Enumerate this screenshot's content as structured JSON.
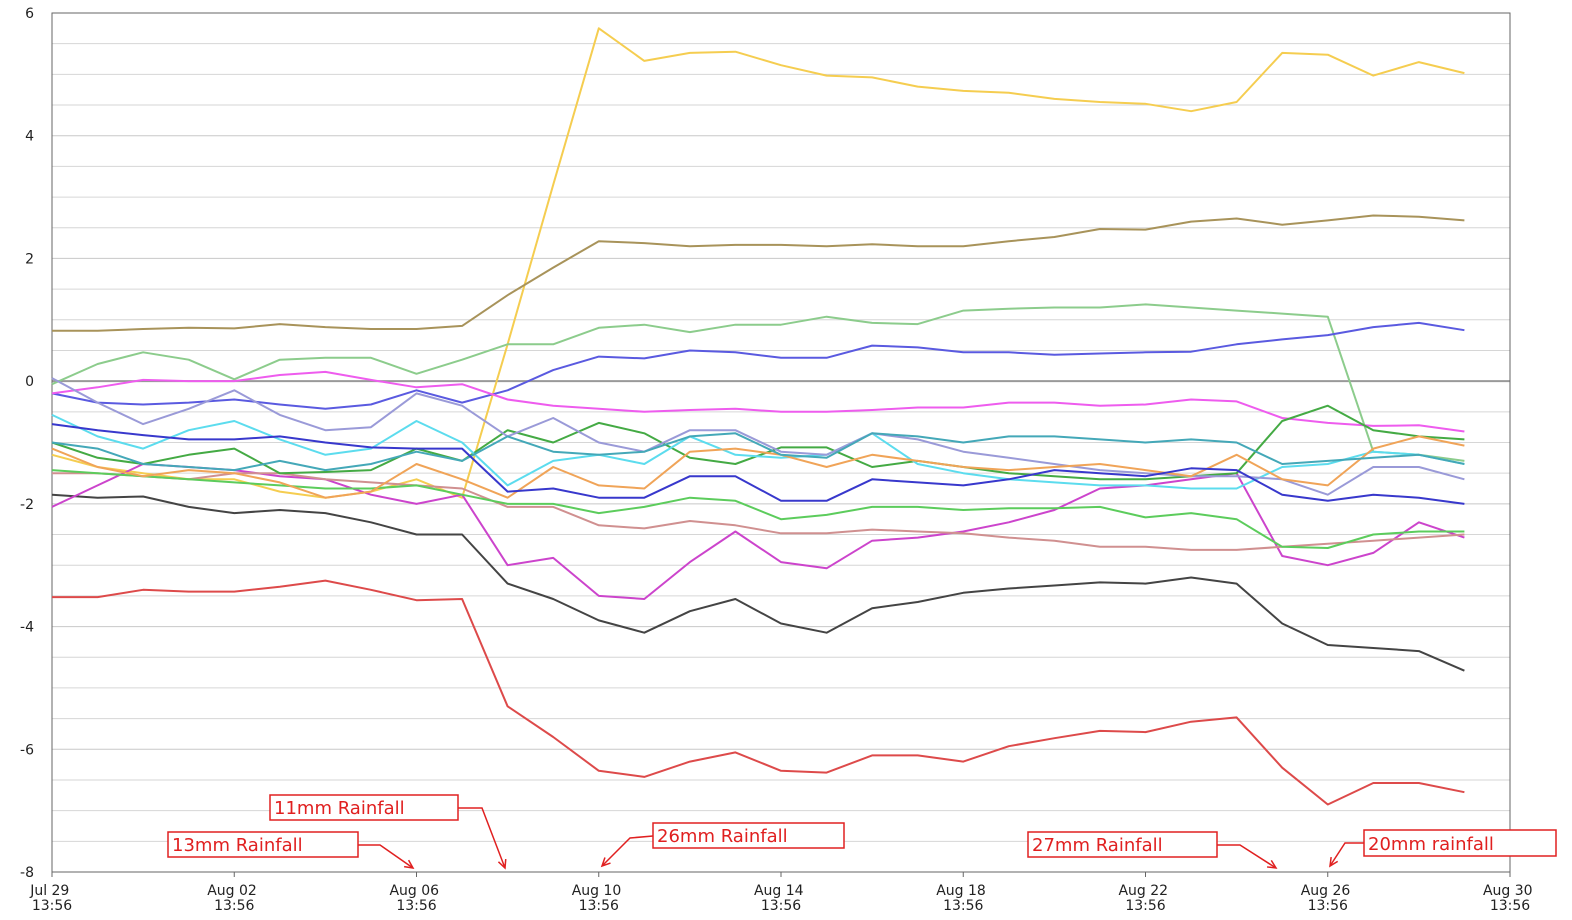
{
  "chart_data": {
    "type": "line",
    "x": [
      "Jul 29 13:56",
      "Jul 30 13:56",
      "Jul 31 13:56",
      "Aug 01 13:56",
      "Aug 02 13:56",
      "Aug 03 13:56",
      "Aug 04 13:56",
      "Aug 05 13:56",
      "Aug 06 13:56",
      "Aug 07 13:56",
      "Aug 08 13:56",
      "Aug 09 13:56",
      "Aug 10 13:56",
      "Aug 11 13:56",
      "Aug 12 13:56",
      "Aug 13 13:56",
      "Aug 14 13:56",
      "Aug 15 13:56",
      "Aug 16 13:56",
      "Aug 17 13:56",
      "Aug 18 13:56",
      "Aug 19 13:56",
      "Aug 20 13:56",
      "Aug 21 13:56",
      "Aug 22 13:56",
      "Aug 23 13:56",
      "Aug 24 13:56",
      "Aug 25 13:56",
      "Aug 26 13:56",
      "Aug 27 13:56",
      "Aug 28 13:56",
      "Aug 29 13:56"
    ],
    "xlim": [
      "Jul 29 13:56",
      "Aug 30 13:56"
    ],
    "xticks": [
      "Jul 29 13:56",
      "Aug 02 13:56",
      "Aug 06 13:56",
      "Aug 10 13:56",
      "Aug 14 13:56",
      "Aug 18 13:56",
      "Aug 22 13:56",
      "Aug 26 13:56",
      "Aug 30 13:56"
    ],
    "ylim": [
      -8,
      6
    ],
    "yticks": [
      -8,
      -6,
      -4,
      -2,
      0,
      2,
      4,
      6
    ],
    "grid": true,
    "series": [
      {
        "color": "#f5cd50",
        "values": [
          -1.2,
          -1.4,
          -1.5,
          -1.6,
          -1.6,
          -1.8,
          -1.9,
          -1.8,
          -1.6,
          -1.9,
          0.6,
          3.2,
          5.75,
          5.22,
          5.35,
          5.37,
          5.15,
          4.98,
          4.95,
          4.8,
          4.73,
          4.7,
          4.6,
          4.55,
          4.52,
          4.4,
          4.55,
          5.35,
          5.32,
          4.98,
          5.2,
          5.02
        ]
      },
      {
        "color": "#a8935a",
        "values": [
          0.82,
          0.82,
          0.85,
          0.87,
          0.86,
          0.93,
          0.88,
          0.85,
          0.85,
          0.9,
          1.4,
          1.85,
          2.28,
          2.25,
          2.2,
          2.22,
          2.22,
          2.2,
          2.23,
          2.2,
          2.2,
          2.28,
          2.35,
          2.48,
          2.47,
          2.6,
          2.65,
          2.55,
          2.62,
          2.7,
          2.68,
          2.62
        ]
      },
      {
        "color": "#8ccc8c",
        "values": [
          -0.05,
          0.28,
          0.47,
          0.35,
          0.03,
          0.35,
          0.38,
          0.38,
          0.12,
          0.35,
          0.6,
          0.6,
          0.87,
          0.92,
          0.8,
          0.92,
          0.92,
          1.05,
          0.95,
          0.93,
          1.15,
          1.18,
          1.2,
          1.2,
          1.25,
          1.2,
          1.15,
          1.1,
          1.05,
          -1.15,
          -1.2,
          -1.3
        ]
      },
      {
        "color": "#5a5ae0",
        "values": [
          -0.2,
          -0.35,
          -0.38,
          -0.35,
          -0.3,
          -0.38,
          -0.45,
          -0.38,
          -0.15,
          -0.35,
          -0.15,
          0.18,
          0.4,
          0.37,
          0.5,
          0.47,
          0.38,
          0.38,
          0.58,
          0.55,
          0.47,
          0.47,
          0.43,
          0.45,
          0.47,
          0.48,
          0.6,
          0.68,
          0.75,
          0.88,
          0.95,
          0.83
        ]
      },
      {
        "color": "#ee5cee",
        "values": [
          -0.2,
          -0.1,
          0.02,
          0.0,
          0.0,
          0.1,
          0.15,
          0.02,
          -0.1,
          -0.05,
          -0.3,
          -0.4,
          -0.45,
          -0.5,
          -0.47,
          -0.45,
          -0.5,
          -0.5,
          -0.47,
          -0.43,
          -0.43,
          -0.35,
          -0.35,
          -0.4,
          -0.38,
          -0.3,
          -0.33,
          -0.6,
          -0.68,
          -0.73,
          -0.72,
          -0.82
        ]
      },
      {
        "color": "#444444",
        "values": [
          -1.85,
          -1.9,
          -1.88,
          -2.05,
          -2.15,
          -2.1,
          -2.15,
          -2.3,
          -2.5,
          -2.5,
          -3.3,
          -3.55,
          -3.9,
          -4.1,
          -3.75,
          -3.55,
          -3.95,
          -4.1,
          -3.7,
          -3.6,
          -3.45,
          -3.38,
          -3.33,
          -3.28,
          -3.3,
          -3.2,
          -3.3,
          -3.95,
          -4.3,
          -4.35,
          -4.4,
          -4.72
        ]
      },
      {
        "color": "#dd4a4a",
        "values": [
          -3.52,
          -3.52,
          -3.4,
          -3.43,
          -3.43,
          -3.35,
          -3.25,
          -3.4,
          -3.57,
          -3.55,
          -5.3,
          -5.8,
          -6.35,
          -6.45,
          -6.2,
          -6.05,
          -6.35,
          -6.38,
          -6.1,
          -6.1,
          -6.2,
          -5.95,
          -5.82,
          -5.7,
          -5.72,
          -5.55,
          -5.48,
          -6.3,
          -6.9,
          -6.55,
          -6.55,
          -6.7
        ]
      },
      {
        "color": "#cc44cc",
        "values": [
          -2.05,
          -1.7,
          -1.35,
          -1.4,
          -1.45,
          -1.55,
          -1.6,
          -1.85,
          -2.0,
          -1.85,
          -3.0,
          -2.88,
          -3.5,
          -3.55,
          -2.95,
          -2.45,
          -2.95,
          -3.05,
          -2.6,
          -2.55,
          -2.45,
          -2.3,
          -2.1,
          -1.75,
          -1.7,
          -1.6,
          -1.5,
          -2.85,
          -3.0,
          -2.8,
          -2.3,
          -2.55
        ]
      },
      {
        "color": "#d09090",
        "values": [
          -1.5,
          -1.5,
          -1.55,
          -1.6,
          -1.5,
          -1.5,
          -1.6,
          -1.65,
          -1.7,
          -1.75,
          -2.05,
          -2.05,
          -2.35,
          -2.4,
          -2.28,
          -2.35,
          -2.48,
          -2.48,
          -2.42,
          -2.45,
          -2.48,
          -2.55,
          -2.6,
          -2.7,
          -2.7,
          -2.75,
          -2.75,
          -2.7,
          -2.65,
          -2.6,
          -2.55,
          -2.5
        ]
      },
      {
        "color": "#5ccc5c",
        "values": [
          -1.45,
          -1.5,
          -1.55,
          -1.6,
          -1.65,
          -1.7,
          -1.75,
          -1.75,
          -1.7,
          -1.85,
          -2.0,
          -2.0,
          -2.15,
          -2.05,
          -1.9,
          -1.95,
          -2.25,
          -2.18,
          -2.05,
          -2.05,
          -2.1,
          -2.07,
          -2.07,
          -2.05,
          -2.22,
          -2.15,
          -2.25,
          -2.7,
          -2.72,
          -2.5,
          -2.45,
          -2.45
        ]
      },
      {
        "color": "#44aa44",
        "values": [
          -1.0,
          -1.25,
          -1.35,
          -1.2,
          -1.1,
          -1.5,
          -1.48,
          -1.45,
          -1.1,
          -1.3,
          -0.8,
          -1.0,
          -0.68,
          -0.85,
          -1.25,
          -1.35,
          -1.08,
          -1.08,
          -1.4,
          -1.3,
          -1.4,
          -1.5,
          -1.55,
          -1.6,
          -1.6,
          -1.55,
          -1.5,
          -0.65,
          -0.4,
          -0.8,
          -0.9,
          -0.95
        ]
      },
      {
        "color": "#5cdcee",
        "values": [
          -0.55,
          -0.9,
          -1.1,
          -0.8,
          -0.65,
          -0.95,
          -1.2,
          -1.1,
          -0.65,
          -1.0,
          -1.7,
          -1.3,
          -1.2,
          -1.35,
          -0.9,
          -1.2,
          -1.25,
          -1.2,
          -0.85,
          -1.35,
          -1.5,
          -1.6,
          -1.65,
          -1.7,
          -1.7,
          -1.75,
          -1.75,
          -1.4,
          -1.35,
          -1.15,
          -1.2,
          -1.35
        ]
      },
      {
        "color": "#9a9ad8",
        "values": [
          0.05,
          -0.35,
          -0.7,
          -0.45,
          -0.15,
          -0.55,
          -0.8,
          -0.75,
          -0.2,
          -0.4,
          -0.9,
          -0.6,
          -1.0,
          -1.15,
          -0.8,
          -0.8,
          -1.15,
          -1.2,
          -0.85,
          -0.95,
          -1.15,
          -1.25,
          -1.35,
          -1.45,
          -1.5,
          -1.55,
          -1.55,
          -1.6,
          -1.85,
          -1.4,
          -1.4,
          -1.6
        ]
      },
      {
        "color": "#f0a458",
        "values": [
          -1.1,
          -1.4,
          -1.55,
          -1.45,
          -1.5,
          -1.65,
          -1.9,
          -1.8,
          -1.35,
          -1.6,
          -1.9,
          -1.4,
          -1.7,
          -1.75,
          -1.15,
          -1.1,
          -1.2,
          -1.4,
          -1.2,
          -1.3,
          -1.4,
          -1.45,
          -1.4,
          -1.35,
          -1.45,
          -1.55,
          -1.2,
          -1.6,
          -1.7,
          -1.1,
          -0.9,
          -1.05
        ]
      },
      {
        "color": "#44a8b8",
        "values": [
          -1.0,
          -1.1,
          -1.35,
          -1.4,
          -1.45,
          -1.3,
          -1.45,
          -1.35,
          -1.15,
          -1.3,
          -0.9,
          -1.15,
          -1.2,
          -1.15,
          -0.9,
          -0.85,
          -1.2,
          -1.25,
          -0.85,
          -0.9,
          -1.0,
          -0.9,
          -0.9,
          -0.95,
          -1.0,
          -0.95,
          -1.0,
          -1.35,
          -1.3,
          -1.25,
          -1.2,
          -1.35
        ]
      },
      {
        "color": "#3838cc",
        "values": [
          -0.7,
          -0.8,
          -0.88,
          -0.95,
          -0.95,
          -0.9,
          -1.0,
          -1.08,
          -1.1,
          -1.1,
          -1.8,
          -1.75,
          -1.9,
          -1.9,
          -1.55,
          -1.55,
          -1.95,
          -1.95,
          -1.6,
          -1.65,
          -1.7,
          -1.6,
          -1.45,
          -1.5,
          -1.55,
          -1.42,
          -1.45,
          -1.85,
          -1.95,
          -1.85,
          -1.9,
          -2.0
        ]
      }
    ],
    "annotations": [
      "11mm Rainfall",
      "13mm Rainfall",
      "26mm Rainfall",
      "27mm Rainfall",
      "20mm rainfall"
    ]
  }
}
